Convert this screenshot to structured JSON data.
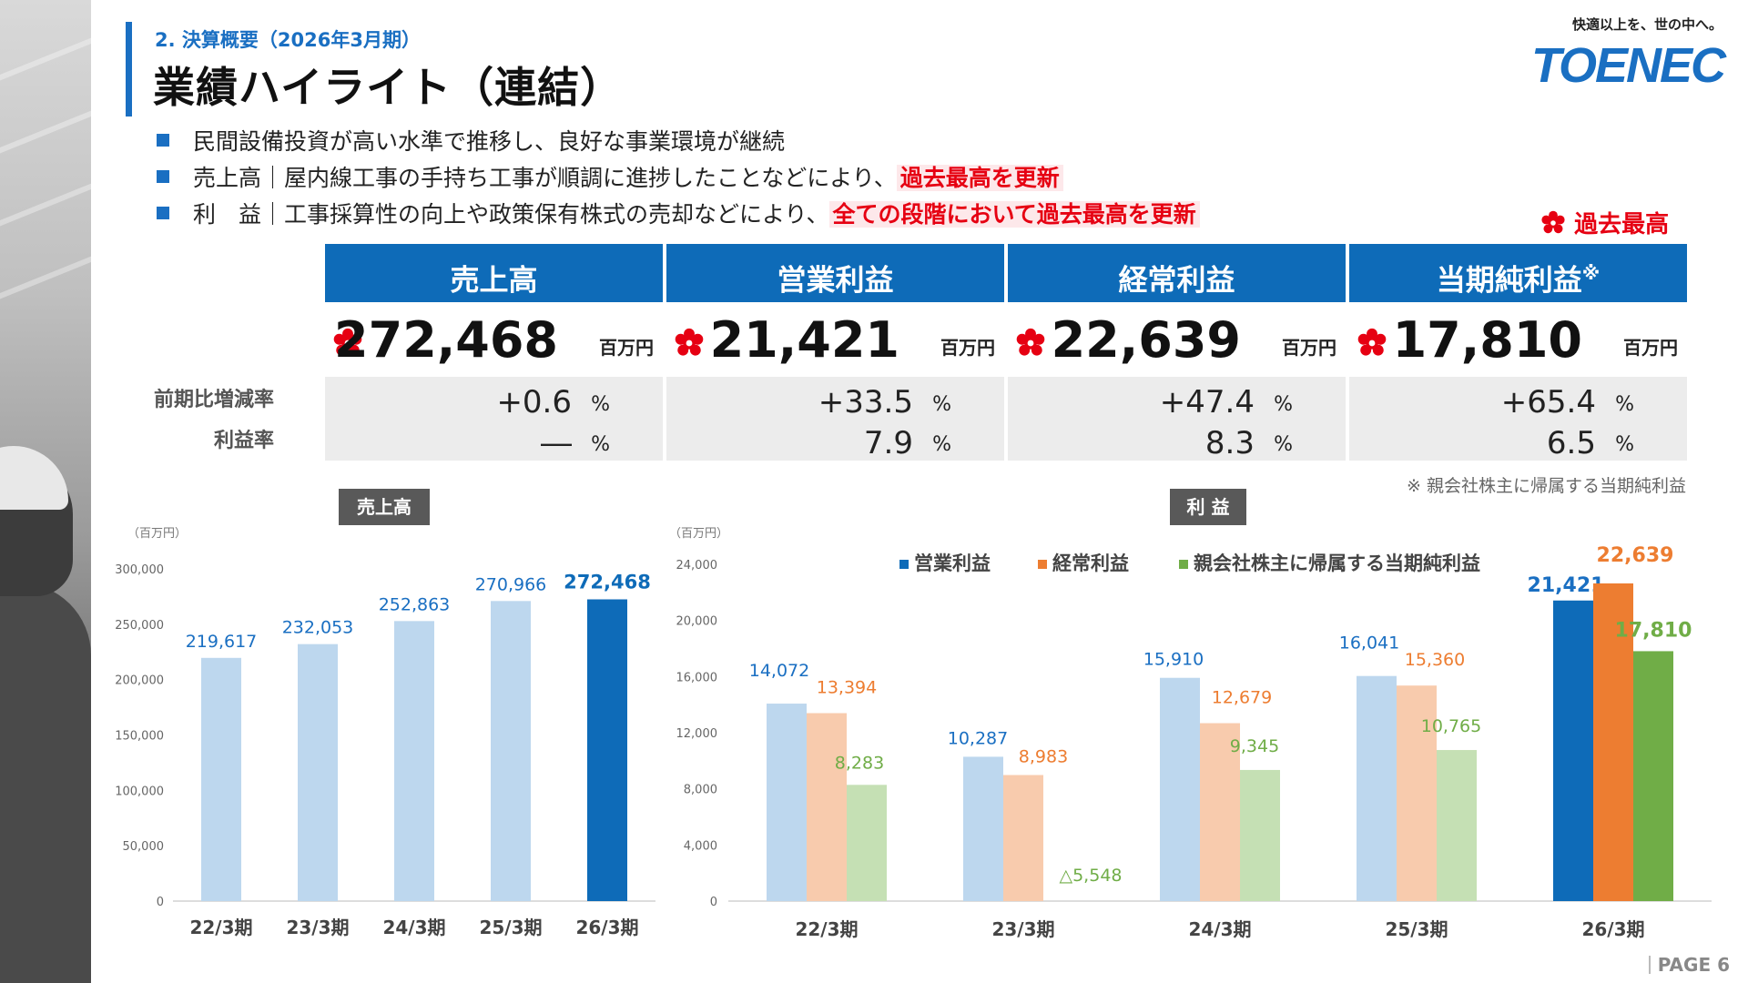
{
  "header": {
    "section": "2. 決算概要（2026年3月期）",
    "title": "業績ハイライト（連結）",
    "logo_tagline": "快適以上を、世の中へ。",
    "logo_text": "TOENEC"
  },
  "bullets": [
    {
      "text": "民間設備投資が高い水準で推移し、良好な事業環境が継続",
      "highlight": ""
    },
    {
      "text": "売上高｜屋内線工事の手持ち工事が順調に進捗したことなどにより、",
      "highlight": "過去最高を更新"
    },
    {
      "text": "利　益｜工事採算性の向上や政策保有株式の売却などにより、",
      "highlight": "全ての段階において過去最高を更新"
    }
  ],
  "record_legend": "過去最高",
  "kpi": {
    "row_labels": [
      "前期比増減率",
      "利益率"
    ],
    "items": [
      {
        "name": "売上高",
        "note_mark": "",
        "value": "272,468",
        "unit": "百万円",
        "yoy": "+0.6",
        "margin": "―",
        "pct": "%"
      },
      {
        "name": "営業利益",
        "note_mark": "",
        "value": "21,421",
        "unit": "百万円",
        "yoy": "+33.5",
        "margin": "7.9",
        "pct": "%"
      },
      {
        "name": "経常利益",
        "note_mark": "",
        "value": "22,639",
        "unit": "百万円",
        "yoy": "+47.4",
        "margin": "8.3",
        "pct": "%"
      },
      {
        "name": "当期純利益",
        "note_mark": "※",
        "value": "17,810",
        "unit": "百万円",
        "yoy": "+65.4",
        "margin": "6.5",
        "pct": "%"
      }
    ],
    "note": "※ 親会社株主に帰属する当期純利益"
  },
  "colors": {
    "accent": "#1a6fc2",
    "record_red": "#e60012",
    "sales_light": "#bdd7ee",
    "sales_dark": "#0e6bb8",
    "op_light": "#bdd7ee",
    "op_dark": "#0e6bb8",
    "ord_light": "#f8cbad",
    "ord_dark": "#ed7d31",
    "net_light": "#c5e0b4",
    "net_dark": "#70ad47"
  },
  "chart_data": [
    {
      "type": "bar",
      "title": "売上高",
      "unit_label": "（百万円）",
      "categories": [
        "22/3期",
        "23/3期",
        "24/3期",
        "25/3期",
        "26/3期"
      ],
      "values": [
        219617,
        232053,
        252863,
        270966,
        272468
      ],
      "data_labels": [
        "219,617",
        "232,053",
        "252,863",
        "270,966",
        "272,468"
      ],
      "ylim": [
        0,
        300000
      ],
      "yticks": [
        0,
        50000,
        100000,
        150000,
        200000,
        250000,
        300000
      ],
      "ytick_labels": [
        "0",
        "50,000",
        "100,000",
        "150,000",
        "200,000",
        "250,000",
        "300,000"
      ],
      "highlight_index": 4
    },
    {
      "type": "bar",
      "title": "利 益",
      "unit_label": "（百万円）",
      "categories": [
        "22/3期",
        "23/3期",
        "24/3期",
        "25/3期",
        "26/3期"
      ],
      "series": [
        {
          "name": "営業利益",
          "values": [
            14072,
            10287,
            15910,
            16041,
            21421
          ],
          "data_labels": [
            "14,072",
            "10,287",
            "15,910",
            "16,041",
            "21,421"
          ]
        },
        {
          "name": "経常利益",
          "values": [
            13394,
            8983,
            12679,
            15360,
            22639
          ],
          "data_labels": [
            "13,394",
            "8,983",
            "12,679",
            "15,360",
            "22,639"
          ]
        },
        {
          "name": "親会社株主に帰属する当期純利益",
          "values": [
            8283,
            -5548,
            9345,
            10765,
            17810
          ],
          "data_labels": [
            "8,283",
            "△5,548",
            "9,345",
            "10,765",
            "17,810"
          ]
        }
      ],
      "ylim": [
        0,
        24000
      ],
      "yticks": [
        0,
        4000,
        8000,
        12000,
        16000,
        20000,
        24000
      ],
      "ytick_labels": [
        "0",
        "4,000",
        "8,000",
        "12,000",
        "16,000",
        "20,000",
        "24,000"
      ],
      "legend": "top",
      "highlight_index": 4
    }
  ],
  "page": "PAGE 6"
}
